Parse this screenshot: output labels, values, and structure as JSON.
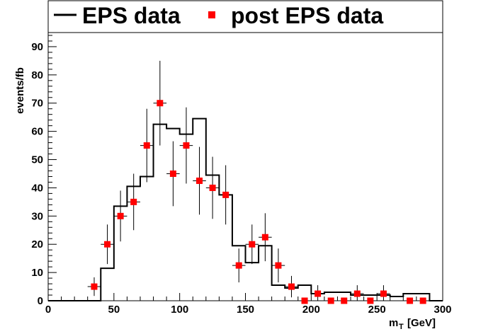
{
  "chart_data": {
    "type": "line",
    "xlabel": "m",
    "xlabel_sub": "T",
    "xlabel_unit": "[GeV]",
    "ylabel": "events/fb",
    "xlim": [
      0,
      300
    ],
    "ylim": [
      0,
      95
    ],
    "x_ticks": [
      0,
      50,
      100,
      150,
      200,
      250,
      300
    ],
    "y_ticks": [
      0,
      10,
      20,
      30,
      40,
      50,
      60,
      70,
      80,
      90
    ],
    "legend_position": "top",
    "grid": false,
    "series": [
      {
        "name": "EPS data",
        "style": "step",
        "color": "#000000",
        "bin_edges": [
          0,
          10,
          20,
          30,
          40,
          50,
          60,
          70,
          80,
          90,
          100,
          110,
          120,
          130,
          140,
          150,
          160,
          170,
          180,
          190,
          200,
          210,
          220,
          230,
          240,
          250,
          260,
          270,
          280,
          290,
          300
        ],
        "values": [
          0,
          0,
          0,
          0,
          11.5,
          33.5,
          40.5,
          44,
          62.5,
          61,
          59,
          64.5,
          44.5,
          37.5,
          19.5,
          13.5,
          19.5,
          5.5,
          4.5,
          5.5,
          2.5,
          3,
          3,
          2,
          2,
          2,
          1.5,
          2.5,
          2.5,
          0
        ]
      },
      {
        "name": "post EPS data",
        "style": "marker",
        "color": "#ff0000",
        "bin_width": 10,
        "x": [
          35,
          45,
          55,
          65,
          75,
          85,
          95,
          105,
          115,
          125,
          135,
          145,
          155,
          165,
          175,
          185,
          195,
          205,
          215,
          225,
          235,
          245,
          255,
          275,
          285
        ],
        "y": [
          5,
          20,
          30,
          35,
          55,
          70,
          45,
          55,
          42.5,
          40,
          37.5,
          12.5,
          20,
          22.5,
          12.5,
          5,
          0,
          2.5,
          0,
          0,
          2.5,
          0,
          2.5,
          0,
          0
        ],
        "yerr": [
          3.3,
          7,
          9,
          10,
          13,
          15,
          11.5,
          13.5,
          12,
          11,
          10.5,
          6,
          7,
          8.5,
          6,
          3.8,
          0,
          3,
          0,
          0,
          3,
          0,
          3,
          0,
          0
        ]
      }
    ]
  }
}
